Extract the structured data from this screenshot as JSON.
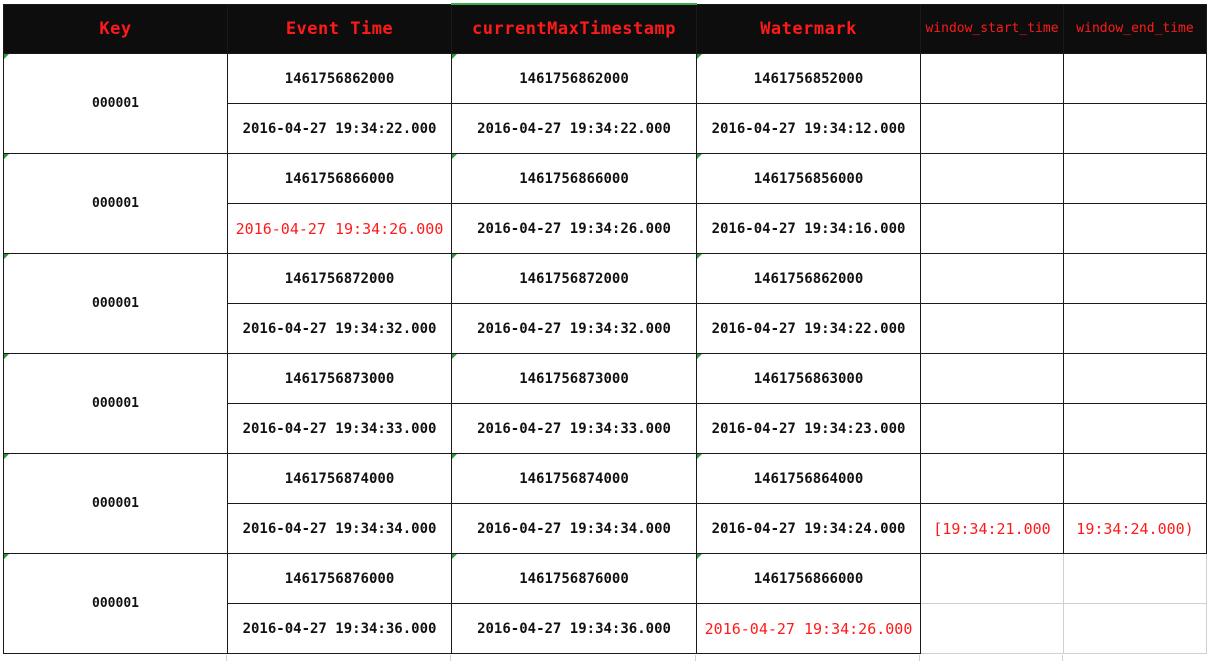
{
  "headers": {
    "key": "Key",
    "event_time": "Event Time",
    "current_max": "currentMaxTimestamp",
    "watermark": "Watermark",
    "window_start": "window_start_time",
    "window_end": "window_end_time"
  },
  "rows": [
    {
      "key": "000001",
      "event_ms": "1461756862000",
      "event_dt": "2016-04-27 19:34:22.000",
      "max_ms": "1461756862000",
      "max_dt": "2016-04-27 19:34:22.000",
      "wm_ms": "1461756852000",
      "wm_dt": "2016-04-27 19:34:12.000",
      "win_start": "",
      "win_end": ""
    },
    {
      "key": "000001",
      "event_ms": "1461756866000",
      "event_dt": "2016-04-27 19:34:26.000",
      "max_ms": "1461756866000",
      "max_dt": "2016-04-27 19:34:26.000",
      "wm_ms": "1461756856000",
      "wm_dt": "2016-04-27 19:34:16.000",
      "win_start": "",
      "win_end": ""
    },
    {
      "key": "000001",
      "event_ms": "1461756872000",
      "event_dt": "2016-04-27 19:34:32.000",
      "max_ms": "1461756872000",
      "max_dt": "2016-04-27 19:34:32.000",
      "wm_ms": "1461756862000",
      "wm_dt": "2016-04-27 19:34:22.000",
      "win_start": "",
      "win_end": ""
    },
    {
      "key": "000001",
      "event_ms": "1461756873000",
      "event_dt": "2016-04-27 19:34:33.000",
      "max_ms": "1461756873000",
      "max_dt": "2016-04-27 19:34:33.000",
      "wm_ms": "1461756863000",
      "wm_dt": "2016-04-27 19:34:23.000",
      "win_start": "",
      "win_end": ""
    },
    {
      "key": "000001",
      "event_ms": "1461756874000",
      "event_dt": "2016-04-27 19:34:34.000",
      "max_ms": "1461756874000",
      "max_dt": "2016-04-27 19:34:34.000",
      "wm_ms": "1461756864000",
      "wm_dt": "2016-04-27 19:34:24.000",
      "win_start": "[19:34:21.000",
      "win_end": "19:34:24.000)"
    },
    {
      "key": "000001",
      "event_ms": "1461756876000",
      "event_dt": "2016-04-27 19:34:36.000",
      "max_ms": "1461756876000",
      "max_dt": "2016-04-27 19:34:36.000",
      "wm_ms": "1461756866000",
      "wm_dt": "2016-04-27 19:34:26.000",
      "win_start": "",
      "win_end": ""
    }
  ],
  "colors": {
    "header_background": "#0d0d0d",
    "header_text": "#ff1a1a",
    "highlight_text": "#ff1a1a",
    "cell_border": "#1a1a1a",
    "cell_marker": "#2f9a3a"
  }
}
